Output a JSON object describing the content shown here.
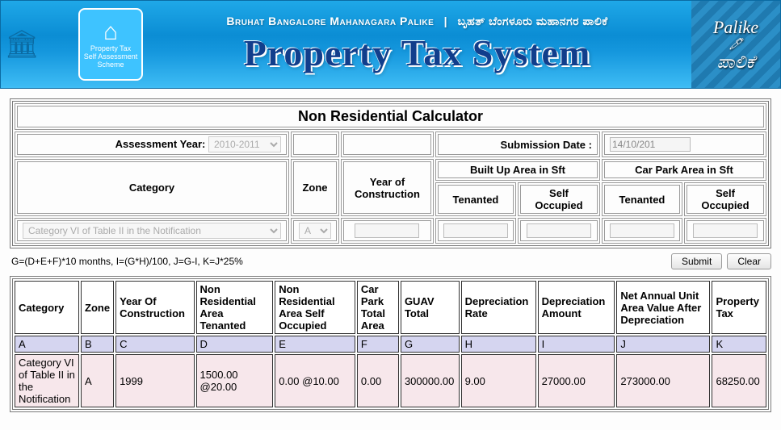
{
  "banner": {
    "org_en": "Bruhat Bangalore Mahanagara Palike",
    "org_kn": "ಬೃಹತ್ ಬೆಂಗಳೂರು ಮಹಾನಗರ ಪಾಲಿಕೆ",
    "title": "Property Tax System",
    "right1": "Palike",
    "right2": "ಪಾಲಿಕೆ",
    "logo_line1": "Property Tax",
    "logo_line2": "Self Assessment Scheme"
  },
  "form": {
    "title": "Non Residential Calculator",
    "assessment_label": "Assessment Year:",
    "assessment_value": "2010-2011",
    "submission_label": "Submission Date :",
    "submission_value": "14/10/201",
    "headers": {
      "category": "Category",
      "zone": "Zone",
      "yoc": "Year of Construction",
      "built_up": "Built Up Area in Sft",
      "car_park": "Car Park Area in Sft",
      "tenanted": "Tenanted",
      "self_occ": "Self Occupied"
    },
    "category_value": "Category VI of Table II in the Notification",
    "zone_value": "A",
    "formula": "G=(D+E+F)*10 months, I=(G*H)/100, J=G-I, K=J*25%",
    "submit": "Submit",
    "clear": "Clear"
  },
  "results": {
    "headers": {
      "a": "Category",
      "b": "Zone",
      "c": "Year Of Construction",
      "d": "Non Residential Area Tenanted",
      "e": "Non Residential Area Self Occupied",
      "f": "Car Park Total Area",
      "g": "GUAV Total",
      "h": "Depreciation Rate",
      "i": "Depreciation Amount",
      "j": "Net Annual Unit Area Value After Depreciation",
      "k": "Property Tax"
    },
    "letters": {
      "a": "A",
      "b": "B",
      "c": "C",
      "d": "D",
      "e": "E",
      "f": "F",
      "g": "G",
      "h": "H",
      "i": "I",
      "j": "J",
      "k": "K"
    },
    "row": {
      "a": "Category VI of Table II in the Notification",
      "b": "A",
      "c": "1999",
      "d": "1500.00 @20.00",
      "e": "0.00 @10.00",
      "f": "0.00",
      "g": "300000.00",
      "h": "9.00",
      "i": "27000.00",
      "j": "273000.00",
      "k": "68250.00"
    }
  },
  "colors": {
    "banner_grad_top": "#1fa8e8",
    "banner_grad_bot": "#3fbdf5",
    "title_color": "#113e8c",
    "letters_bg": "#d5d5f0",
    "data_bg": "#f7e7eb"
  }
}
